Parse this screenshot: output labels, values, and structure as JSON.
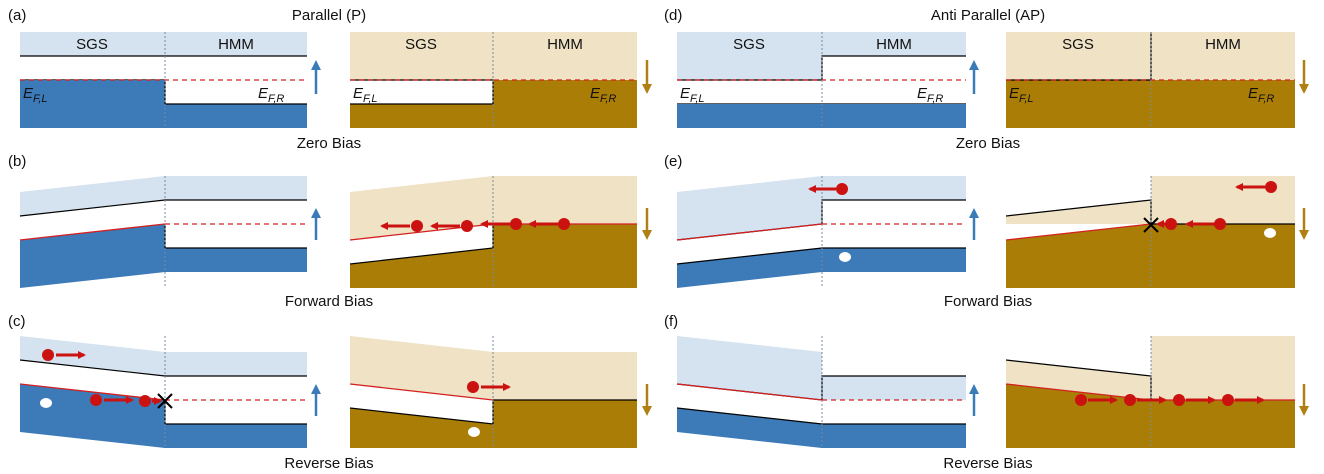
{
  "colors": {
    "up_band": "#3c7ab8",
    "up_band_light": "#d5e2ef",
    "down_band": "#a97d06",
    "down_band_light": "#efe2c5",
    "fermi_line": "#d42020",
    "electron": "#cc1111",
    "hole": "#ffffff",
    "up_arrow": "#3a7cb8",
    "down_arrow": "#b08015"
  },
  "sections": {
    "parallel": {
      "panel_labels": [
        "(a)",
        "(b)",
        "(c)"
      ],
      "title": "Parallel (P)"
    },
    "antiparallel": {
      "panel_labels": [
        "(d)",
        "(e)",
        "(f)"
      ],
      "title": "Anti Parallel (AP)"
    }
  },
  "material_labels": {
    "left": "SGS",
    "right": "HMM"
  },
  "fermi_labels": {
    "left_main": "E",
    "left_sub": "F,L",
    "right_main": "E",
    "right_sub": "F,R"
  },
  "bias_labels": {
    "zero": "Zero Bias",
    "forward": "Forward Bias",
    "reverse": "Reverse Bias"
  },
  "icons": {
    "spin_up": "up-arrow-icon",
    "spin_down": "down-arrow-icon",
    "electron": "electron-dot-icon",
    "hole": "hole-dot-icon",
    "blocked": "cross-mark-icon"
  }
}
